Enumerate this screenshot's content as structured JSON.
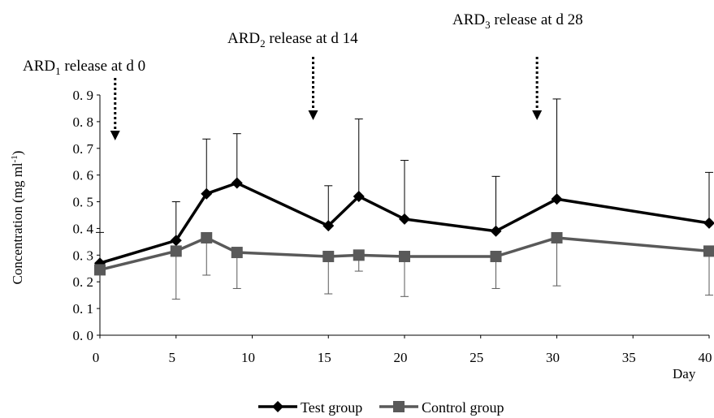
{
  "chart_data": {
    "type": "line",
    "xlabel": "Day",
    "ylabel": "Concentration (mg ml",
    "ylabel_sup": "-1",
    "ylabel_end": ")",
    "xlim": [
      0,
      40
    ],
    "ylim": [
      0,
      0.9
    ],
    "x_ticks": [
      "0",
      "5",
      "10",
      "15",
      "20",
      "25",
      "30",
      "35",
      "40"
    ],
    "y_ticks": [
      "0. 0",
      "0. 1",
      "0. 2",
      "0. 3",
      "0. 4",
      "0. 5",
      "0. 6",
      "0. 7",
      "0. 8",
      "0. 9"
    ],
    "grid": false,
    "legend_position": "bottom",
    "series": [
      {
        "name": "Test group",
        "color": "#000000",
        "marker": "diamond",
        "x": [
          0,
          5,
          7,
          9,
          15,
          17,
          20,
          26,
          30,
          40
        ],
        "y": [
          0.27,
          0.355,
          0.53,
          0.57,
          0.41,
          0.52,
          0.435,
          0.39,
          0.51,
          0.42
        ],
        "error_upper": [
          0.385,
          0.5,
          0.735,
          0.755,
          0.56,
          0.81,
          0.655,
          0.595,
          0.885,
          0.61
        ]
      },
      {
        "name": "Control group",
        "color": "#595959",
        "marker": "square",
        "x": [
          0,
          5,
          7,
          9,
          15,
          17,
          20,
          26,
          30,
          40
        ],
        "y": [
          0.245,
          0.315,
          0.365,
          0.31,
          0.295,
          0.3,
          0.295,
          0.295,
          0.365,
          0.315
        ],
        "error_lower": [
          0.245,
          0.135,
          0.225,
          0.175,
          0.155,
          0.24,
          0.145,
          0.175,
          0.185,
          0.15
        ]
      }
    ],
    "annotations": [
      {
        "prefix": "ARD",
        "sub": "1",
        "suffix": " release at d 0",
        "arrow_x": 1
      },
      {
        "prefix": "ARD",
        "sub": "2",
        "suffix": " release at d 14",
        "arrow_x": 14
      },
      {
        "prefix": "ARD",
        "sub": "3",
        "suffix": " release at d 28",
        "arrow_x": 28.7
      }
    ]
  }
}
